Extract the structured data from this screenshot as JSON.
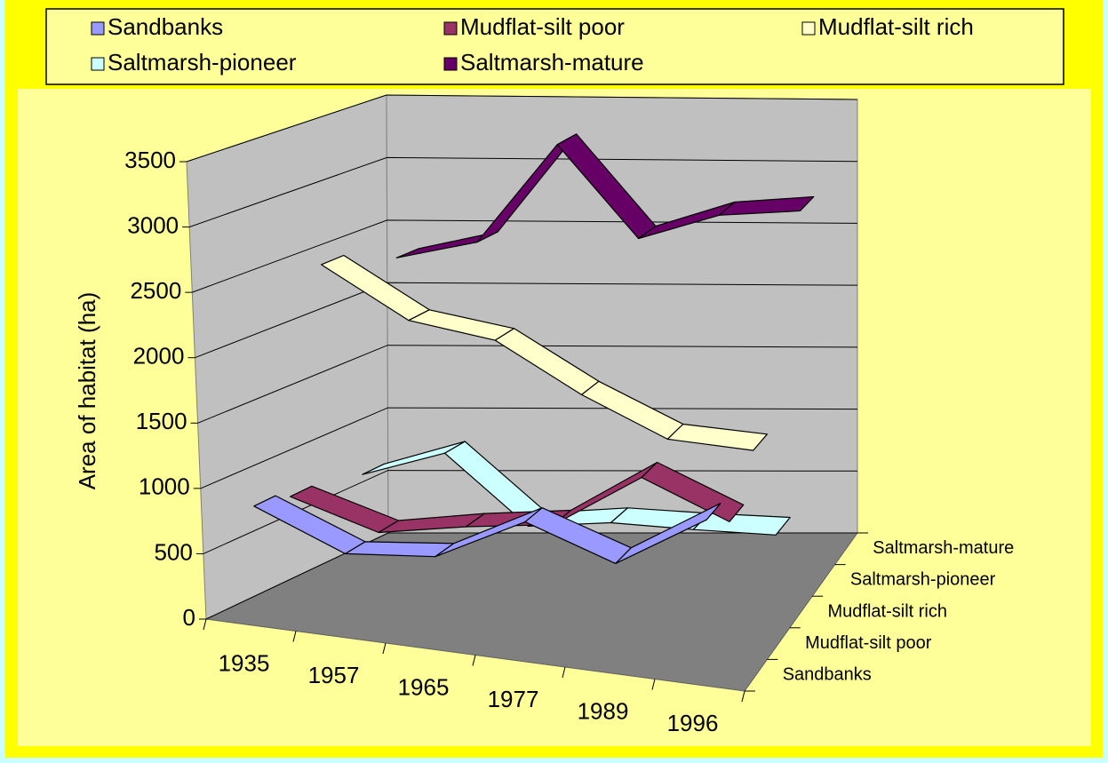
{
  "chart_data": {
    "type": "line3d",
    "y_label": "Area of habitat (ha)",
    "categories": [
      "1935",
      "1957",
      "1965",
      "1977",
      "1989",
      "1996"
    ],
    "series": [
      {
        "name": "Sandbanks",
        "color": "#9999ff",
        "values": [
          880,
          600,
          660,
          1000,
          770,
          1170
        ]
      },
      {
        "name": "Mudflat-silt poor",
        "color": "#993366",
        "values": [
          820,
          610,
          720,
          800,
          1220,
          950
        ]
      },
      {
        "name": "Mudflat-silt rich",
        "color": "#ffffcc",
        "values": [
          2490,
          2100,
          1990,
          1615,
          1320,
          1280
        ]
      },
      {
        "name": "Saltmarsh-pioneer",
        "color": "#ccffff",
        "values": [
          720,
          920,
          380,
          440,
          420,
          410
        ]
      },
      {
        "name": "Saltmarsh-mature",
        "color": "#660066",
        "values": [
          2300,
          2440,
          3230,
          2500,
          2700,
          2750
        ]
      }
    ],
    "ylim": [
      0,
      3500
    ],
    "yticks": [
      0,
      500,
      1000,
      1500,
      2000,
      2500,
      3000,
      3500
    ],
    "grid": true
  }
}
